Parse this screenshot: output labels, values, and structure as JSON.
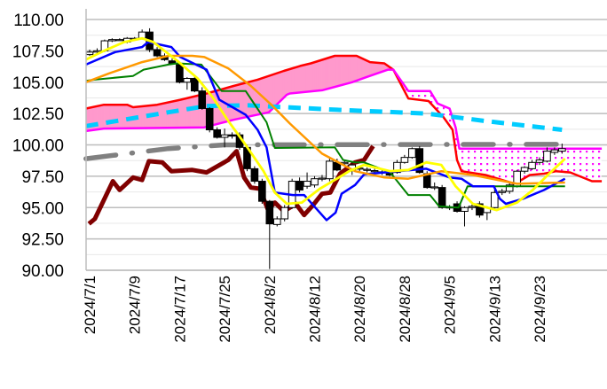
{
  "chart_data": {
    "type": "candlestick-ichimoku",
    "title": "",
    "xlabel": "",
    "ylabel": "",
    "ylim": [
      90,
      110
    ],
    "yticks": [
      "110.00",
      "107.50",
      "105.00",
      "102.50",
      "100.00",
      "97.50",
      "95.00",
      "92.50",
      "90.00"
    ],
    "ytick_values": [
      110,
      107.5,
      105,
      102.5,
      100,
      97.5,
      95,
      92.5,
      90
    ],
    "xticks": [
      {
        "i": 0,
        "label": "2024/7/1"
      },
      {
        "i": 6,
        "label": "2024/7/9"
      },
      {
        "i": 12,
        "label": "2024/7/17"
      },
      {
        "i": 18,
        "label": "2024/7/25"
      },
      {
        "i": 24,
        "label": "2024/8/2"
      },
      {
        "i": 30,
        "label": "2024/8/12"
      },
      {
        "i": 36,
        "label": "2024/8/20"
      },
      {
        "i": 42,
        "label": "2024/8/28"
      },
      {
        "i": 48,
        "label": "2024/9/5"
      },
      {
        "i": 54,
        "label": "2024/9/13"
      },
      {
        "i": 60,
        "label": "2024/9/23"
      }
    ],
    "x_range": [
      -0.5,
      69
    ],
    "grid": true,
    "candles": [
      [
        107.2,
        107.6,
        107.1,
        107.4
      ],
      [
        107.4,
        107.7,
        107.2,
        107.5
      ],
      [
        107.5,
        108.4,
        107.4,
        108.3
      ],
      [
        108.3,
        108.5,
        108.2,
        108.4
      ],
      [
        108.4,
        108.5,
        108.3,
        108.4
      ],
      [
        108.2,
        108.6,
        108.1,
        108.5
      ],
      [
        108.5,
        108.6,
        108.4,
        108.5
      ],
      [
        108.5,
        109.2,
        108.4,
        109.0
      ],
      [
        109.0,
        109.3,
        107.4,
        107.6
      ],
      [
        107.6,
        107.8,
        107.0,
        107.1
      ],
      [
        107.1,
        107.3,
        106.7,
        106.8
      ],
      [
        106.7,
        106.9,
        106.4,
        106.5
      ],
      [
        106.4,
        106.6,
        104.9,
        105.0
      ],
      [
        105.0,
        105.4,
        104.4,
        105.3
      ],
      [
        105.3,
        105.5,
        104.2,
        104.3
      ],
      [
        104.3,
        104.6,
        102.8,
        102.9
      ],
      [
        102.9,
        103.0,
        101.0,
        101.2
      ],
      [
        101.2,
        101.4,
        100.5,
        100.6
      ],
      [
        100.6,
        101.3,
        99.8,
        100.8
      ],
      [
        100.8,
        101.0,
        100.5,
        100.7
      ],
      [
        100.8,
        101.0,
        99.6,
        99.8
      ],
      [
        99.8,
        100.0,
        97.9,
        98.1
      ],
      [
        98.1,
        98.3,
        96.9,
        97.1
      ],
      [
        97.1,
        97.3,
        95.3,
        95.5
      ],
      [
        95.5,
        95.6,
        90.1,
        93.7
      ],
      [
        93.65,
        94.3,
        93.5,
        94.1
      ],
      [
        94.1,
        95.2,
        93.9,
        95.0
      ],
      [
        95.0,
        97.3,
        94.9,
        97.1
      ],
      [
        97.1,
        97.4,
        96.2,
        96.4
      ],
      [
        96.7,
        97.8,
        96.5,
        97.1
      ],
      [
        96.8,
        97.5,
        96.6,
        97.3
      ],
      [
        97.3,
        97.6,
        97.1,
        97.35
      ],
      [
        97.3,
        98.9,
        97.1,
        98.7
      ],
      [
        98.6,
        98.9,
        97.9,
        98.0
      ],
      [
        98.5,
        98.8,
        98.3,
        98.6
      ],
      [
        98.0,
        98.6,
        97.6,
        98.4
      ],
      [
        98.1,
        98.3,
        97.9,
        98.15
      ],
      [
        98.0,
        98.2,
        97.8,
        98.05
      ],
      [
        97.9,
        98.1,
        97.7,
        97.95
      ],
      [
        97.8,
        98.0,
        97.6,
        97.85
      ],
      [
        97.8,
        97.9,
        97.5,
        97.6
      ],
      [
        97.8,
        98.8,
        97.7,
        98.6
      ],
      [
        98.6,
        99.2,
        98.5,
        99.0
      ],
      [
        99.0,
        99.8,
        98.9,
        99.7
      ],
      [
        99.7,
        99.9,
        97.7,
        97.8
      ],
      [
        97.7,
        97.9,
        96.5,
        96.6
      ],
      [
        96.6,
        97.0,
        96.4,
        96.65
      ],
      [
        96.6,
        96.8,
        94.9,
        95.0
      ],
      [
        95.0,
        95.2,
        94.8,
        95.05
      ],
      [
        95.3,
        95.5,
        94.6,
        94.7
      ],
      [
        94.7,
        95.1,
        93.5,
        95.0
      ],
      [
        95.0,
        95.4,
        94.8,
        95.1
      ],
      [
        95.3,
        95.5,
        94.2,
        94.4
      ],
      [
        94.6,
        95.1,
        94.0,
        95.0
      ],
      [
        95.0,
        96.4,
        94.9,
        96.2
      ],
      [
        96.2,
        96.5,
        96.0,
        96.3
      ],
      [
        96.3,
        97.0,
        96.1,
        96.8
      ],
      [
        96.7,
        98.0,
        96.6,
        97.9
      ],
      [
        97.9,
        98.3,
        97.7,
        98.2
      ],
      [
        98.1,
        98.8,
        98.0,
        98.6
      ],
      [
        98.6,
        99.0,
        98.4,
        98.8
      ],
      [
        98.7,
        99.8,
        98.6,
        99.5
      ],
      [
        99.4,
        99.8,
        99.2,
        99.6
      ],
      [
        99.5,
        100.1,
        99.3,
        99.7
      ]
    ],
    "candle_format": [
      "open",
      "high",
      "low",
      "close"
    ],
    "series": [
      {
        "name": "tenkan",
        "color": "#0000ff",
        "points": [
          [
            -0.5,
            106.4
          ],
          [
            3.4,
            107.4
          ],
          [
            7,
            107.8
          ],
          [
            7.8,
            108.2
          ],
          [
            10.9,
            107.8
          ],
          [
            12.1,
            107.0
          ],
          [
            15.6,
            106.0
          ],
          [
            17.3,
            103.6
          ],
          [
            20.8,
            102.4
          ],
          [
            22.4,
            101.2
          ],
          [
            23.6,
            99.8
          ],
          [
            24.7,
            96.2
          ],
          [
            27.1,
            96.0
          ],
          [
            28.6,
            96.0
          ],
          [
            31.6,
            94.0
          ],
          [
            32.8,
            94.6
          ],
          [
            33.6,
            96.1
          ],
          [
            35.4,
            96.8
          ],
          [
            36.6,
            97.65
          ],
          [
            39.3,
            97.8
          ],
          [
            44.9,
            98.1
          ],
          [
            48.0,
            97.4
          ],
          [
            49.6,
            97.3
          ],
          [
            51.1,
            96.7
          ],
          [
            53.9,
            96.7
          ],
          [
            54.7,
            95.7
          ],
          [
            55.5,
            95.3
          ],
          [
            57.8,
            95.7
          ],
          [
            60.6,
            96.4
          ],
          [
            63.4,
            97.3
          ]
        ]
      },
      {
        "name": "kijun",
        "color": "#008000",
        "points": [
          [
            -0.5,
            105.1
          ],
          [
            0.7,
            105.2
          ],
          [
            5.8,
            105.5
          ],
          [
            7.2,
            106.0
          ],
          [
            10.5,
            106.4
          ],
          [
            11.7,
            106.5
          ],
          [
            14.9,
            106.4
          ],
          [
            17.6,
            104.3
          ],
          [
            20.8,
            104.3
          ],
          [
            23.6,
            101.8
          ],
          [
            24.7,
            99.75
          ],
          [
            32.7,
            99.8
          ],
          [
            33.8,
            98.8
          ],
          [
            35.4,
            98.6
          ],
          [
            36.6,
            98.6
          ],
          [
            40.1,
            97.8
          ],
          [
            42.5,
            96.0
          ],
          [
            45.4,
            96.0
          ],
          [
            46.6,
            95.1
          ],
          [
            49.2,
            95.0
          ],
          [
            50.4,
            96.7
          ],
          [
            63.4,
            96.7
          ]
        ]
      },
      {
        "name": "senkou_a",
        "color": "#ff0000",
        "points": [
          [
            -0.5,
            102.9
          ],
          [
            1.9,
            103.2
          ],
          [
            5.0,
            103.2
          ],
          [
            5.8,
            103.0
          ],
          [
            9.0,
            103.2
          ],
          [
            12.1,
            103.6
          ],
          [
            15.6,
            104.1
          ],
          [
            19.2,
            104.7
          ],
          [
            22.4,
            105.2
          ],
          [
            25.9,
            105.9
          ],
          [
            28.1,
            106.3
          ],
          [
            29.5,
            106.5
          ],
          [
            32.7,
            107.1
          ],
          [
            35.6,
            107.1
          ],
          [
            37.4,
            106.6
          ],
          [
            39.3,
            106.5
          ],
          [
            40.5,
            106.0
          ],
          [
            42.5,
            103.7
          ],
          [
            45.2,
            103.5
          ],
          [
            47.2,
            102.2
          ],
          [
            48.4,
            101.2
          ],
          [
            49.0,
            98.8
          ],
          [
            49.6,
            97.9
          ],
          [
            52.8,
            97.6
          ],
          [
            56.7,
            96.9
          ],
          [
            58.7,
            97.6
          ],
          [
            60.6,
            97.7
          ],
          [
            62.2,
            97.9
          ],
          [
            64.1,
            97.8
          ],
          [
            67.0,
            97.1
          ],
          [
            68.3,
            97.1
          ]
        ]
      },
      {
        "name": "senkou_b",
        "color": "#ff00ff",
        "points": [
          [
            -0.5,
            101.1
          ],
          [
            1.9,
            101.3
          ],
          [
            15.3,
            101.4
          ],
          [
            19.2,
            102.0
          ],
          [
            23.9,
            102.6
          ],
          [
            26.3,
            104.0
          ],
          [
            26.7,
            104.1
          ],
          [
            31.0,
            104.35
          ],
          [
            35.0,
            105.0
          ],
          [
            36.9,
            105.4
          ],
          [
            39.8,
            106.0
          ],
          [
            40.5,
            106.0
          ],
          [
            42.5,
            104.3
          ],
          [
            45.4,
            104.3
          ],
          [
            46.4,
            103.3
          ],
          [
            48.0,
            102.9
          ],
          [
            48.8,
            101.4
          ],
          [
            49.3,
            99.7
          ],
          [
            68.3,
            99.7
          ]
        ]
      },
      {
        "name": "chikou",
        "color": "#800000",
        "points": [
          [
            -0.1,
            93.7
          ],
          [
            0.7,
            94.1
          ],
          [
            3.1,
            97.1
          ],
          [
            4.0,
            96.4
          ],
          [
            5.8,
            97.4
          ],
          [
            7.0,
            97.2
          ],
          [
            7.9,
            98.7
          ],
          [
            9.7,
            98.6
          ],
          [
            10.9,
            97.9
          ],
          [
            13.7,
            98.0
          ],
          [
            15.6,
            97.8
          ],
          [
            18.5,
            98.8
          ],
          [
            19.6,
            99.5
          ],
          [
            20.6,
            97.4
          ],
          [
            21.5,
            96.6
          ],
          [
            22.7,
            96.5
          ],
          [
            23.8,
            94.8
          ],
          [
            24.7,
            95.4
          ],
          [
            25.9,
            94.7
          ],
          [
            27.5,
            95.3
          ],
          [
            28.6,
            94.4
          ],
          [
            29.8,
            95.2
          ],
          [
            31.0,
            96.1
          ],
          [
            32.1,
            96.2
          ],
          [
            33.4,
            97.7
          ],
          [
            35.4,
            98.6
          ],
          [
            36.6,
            98.8
          ],
          [
            37.8,
            99.9
          ]
        ]
      },
      {
        "name": "ma_short",
        "color": "#ffff00",
        "points": [
          [
            -0.5,
            106.8
          ],
          [
            1.9,
            107.5
          ],
          [
            4.6,
            108.2
          ],
          [
            7.0,
            108.5
          ],
          [
            8.5,
            108.2
          ],
          [
            11.7,
            106.7
          ],
          [
            14.4,
            105.3
          ],
          [
            16.4,
            103.8
          ],
          [
            18.5,
            101.9
          ],
          [
            20.8,
            100.0
          ],
          [
            23.2,
            97.9
          ],
          [
            24.7,
            96.2
          ],
          [
            26.3,
            95.3
          ],
          [
            28.3,
            95.4
          ],
          [
            30.7,
            96.5
          ],
          [
            32.7,
            97.2
          ],
          [
            34.6,
            97.9
          ],
          [
            36.6,
            98.4
          ],
          [
            40.1,
            97.9
          ],
          [
            42.5,
            98.0
          ],
          [
            44.9,
            98.6
          ],
          [
            46.9,
            98.4
          ],
          [
            48.8,
            96.7
          ],
          [
            51.1,
            95.3
          ],
          [
            54.3,
            94.8
          ],
          [
            57.0,
            95.4
          ],
          [
            59.1,
            96.4
          ],
          [
            61.1,
            97.6
          ],
          [
            63.4,
            98.9
          ]
        ]
      },
      {
        "name": "ma_mid",
        "color": "#ff9900",
        "points": [
          [
            -0.5,
            105.0
          ],
          [
            2.6,
            105.7
          ],
          [
            7.0,
            106.6
          ],
          [
            10.5,
            107.1
          ],
          [
            13.7,
            107.1
          ],
          [
            15.3,
            107.0
          ],
          [
            18.5,
            106.1
          ],
          [
            21.5,
            104.7
          ],
          [
            24.4,
            103.1
          ],
          [
            26.7,
            101.7
          ],
          [
            31.0,
            99.3
          ],
          [
            35.4,
            97.9
          ],
          [
            39.3,
            97.4
          ],
          [
            42.5,
            97.3
          ],
          [
            46.9,
            97.9
          ],
          [
            51.1,
            97.6
          ],
          [
            57.0,
            96.9
          ],
          [
            63.4,
            97.0
          ]
        ]
      },
      {
        "name": "ma_long",
        "color": "#00ccff",
        "points": [
          [
            -0.5,
            101.5
          ],
          [
            10.5,
            102.6
          ],
          [
            15.6,
            103.1
          ],
          [
            21.2,
            103.15
          ],
          [
            33.0,
            102.8
          ],
          [
            44.9,
            102.5
          ],
          [
            52.8,
            101.9
          ],
          [
            63.0,
            101.2
          ]
        ]
      },
      {
        "name": "ma_longest",
        "color": "#808080",
        "points": [
          [
            -0.5,
            98.9
          ],
          [
            10.5,
            99.7
          ],
          [
            18.0,
            100.0
          ],
          [
            63.5,
            100.05
          ]
        ]
      }
    ],
    "cloud_colors": {
      "bull": "#ff99cc",
      "bear": "#ff00ff"
    }
  }
}
